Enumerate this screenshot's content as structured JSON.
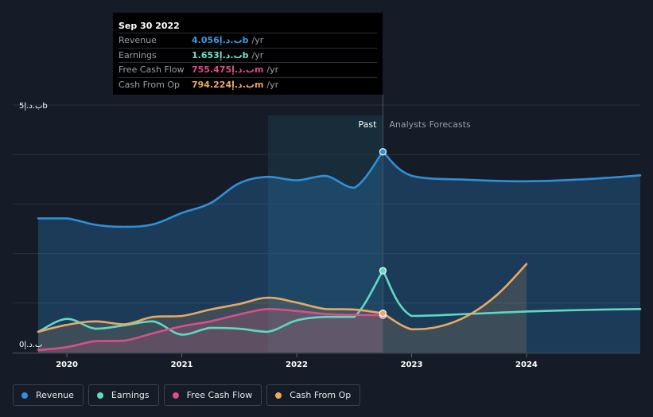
{
  "tooltip": {
    "date": "Sep 30 2022",
    "rows": [
      {
        "label": "Revenue",
        "value": "4.056ب.د.إb",
        "unit": "/yr",
        "color": "#3b9be6"
      },
      {
        "label": "Earnings",
        "value": "1.653ب.د.إb",
        "unit": "/yr",
        "color": "#6ee4d0"
      },
      {
        "label": "Free Cash Flow",
        "value": "755.475ب.د.إm",
        "unit": "/yr",
        "color": "#d94f8a"
      },
      {
        "label": "Cash From Op",
        "value": "794.224ب.د.إm",
        "unit": "/yr",
        "color": "#e8a962"
      }
    ]
  },
  "legend": [
    {
      "label": "Revenue",
      "color": "#2f8fd8"
    },
    {
      "label": "Earnings",
      "color": "#5fd8c4"
    },
    {
      "label": "Free Cash Flow",
      "color": "#d94f8a"
    },
    {
      "label": "Cash From Op",
      "color": "#e8a962"
    }
  ],
  "chart_data": {
    "type": "line",
    "title": "",
    "y_top_label": "5ب.د.إb",
    "y_bottom_label": "0ب.د.إ",
    "ylim": [
      0,
      5
    ],
    "xlim": [
      2019.75,
      2024.99
    ],
    "x_ticks": [
      {
        "value": 2020,
        "label": "2020"
      },
      {
        "value": 2021,
        "label": "2021"
      },
      {
        "value": 2022,
        "label": "2022"
      },
      {
        "value": 2023,
        "label": "2023"
      },
      {
        "value": 2024,
        "label": "2024"
      }
    ],
    "past_label": "Past",
    "forecast_label": "Analysts Forecasts",
    "divider_x": 2022.75,
    "highlight_start": 2021.75,
    "series": [
      {
        "name": "Revenue",
        "color": "#2f8fd8",
        "area": true,
        "past": [
          [
            2019.75,
            2.71
          ],
          [
            2020.0,
            2.71
          ],
          [
            2020.25,
            2.58
          ],
          [
            2020.5,
            2.54
          ],
          [
            2020.75,
            2.59
          ],
          [
            2021.0,
            2.82
          ],
          [
            2021.25,
            3.02
          ],
          [
            2021.5,
            3.42
          ],
          [
            2021.75,
            3.55
          ],
          [
            2022.0,
            3.48
          ],
          [
            2022.25,
            3.57
          ],
          [
            2022.5,
            3.33
          ],
          [
            2022.75,
            4.056
          ]
        ],
        "forecast": [
          [
            2022.75,
            4.056
          ],
          [
            2023.0,
            3.57
          ],
          [
            2023.5,
            3.49
          ],
          [
            2024.0,
            3.46
          ],
          [
            2024.5,
            3.5
          ],
          [
            2024.99,
            3.58
          ]
        ]
      },
      {
        "name": "Earnings",
        "color": "#5fd8c4",
        "area": false,
        "past": [
          [
            2019.75,
            0.42
          ],
          [
            2020.0,
            0.68
          ],
          [
            2020.25,
            0.48
          ],
          [
            2020.5,
            0.55
          ],
          [
            2020.75,
            0.63
          ],
          [
            2021.0,
            0.36
          ],
          [
            2021.25,
            0.5
          ],
          [
            2021.5,
            0.48
          ],
          [
            2021.75,
            0.42
          ],
          [
            2022.0,
            0.65
          ],
          [
            2022.25,
            0.72
          ],
          [
            2022.5,
            0.72
          ],
          [
            2022.75,
            1.653
          ]
        ],
        "forecast": [
          [
            2022.75,
            1.653
          ],
          [
            2023.0,
            0.74
          ],
          [
            2023.5,
            0.78
          ],
          [
            2024.0,
            0.83
          ],
          [
            2024.5,
            0.86
          ],
          [
            2024.99,
            0.88
          ]
        ]
      },
      {
        "name": "Free Cash Flow",
        "color": "#d94f8a",
        "area": true,
        "past": [
          [
            2019.75,
            0.05
          ],
          [
            2020.0,
            0.11
          ],
          [
            2020.25,
            0.23
          ],
          [
            2020.5,
            0.24
          ],
          [
            2020.75,
            0.39
          ],
          [
            2021.0,
            0.53
          ],
          [
            2021.25,
            0.63
          ],
          [
            2021.5,
            0.77
          ],
          [
            2021.75,
            0.88
          ],
          [
            2022.0,
            0.84
          ],
          [
            2022.25,
            0.78
          ],
          [
            2022.5,
            0.76
          ],
          [
            2022.75,
            0.755
          ]
        ],
        "forecast": []
      },
      {
        "name": "Cash From Op",
        "color": "#e8a962",
        "area": true,
        "past": [
          [
            2019.75,
            0.42
          ],
          [
            2020.0,
            0.56
          ],
          [
            2020.25,
            0.63
          ],
          [
            2020.5,
            0.57
          ],
          [
            2020.75,
            0.72
          ],
          [
            2021.0,
            0.74
          ],
          [
            2021.25,
            0.87
          ],
          [
            2021.5,
            0.98
          ],
          [
            2021.75,
            1.11
          ],
          [
            2022.0,
            1.01
          ],
          [
            2022.25,
            0.88
          ],
          [
            2022.5,
            0.87
          ],
          [
            2022.75,
            0.794
          ]
        ],
        "forecast": [
          [
            2022.75,
            0.794
          ],
          [
            2023.0,
            0.47
          ],
          [
            2023.25,
            0.53
          ],
          [
            2023.5,
            0.76
          ],
          [
            2023.75,
            1.18
          ],
          [
            2024.0,
            1.79
          ]
        ]
      }
    ]
  }
}
